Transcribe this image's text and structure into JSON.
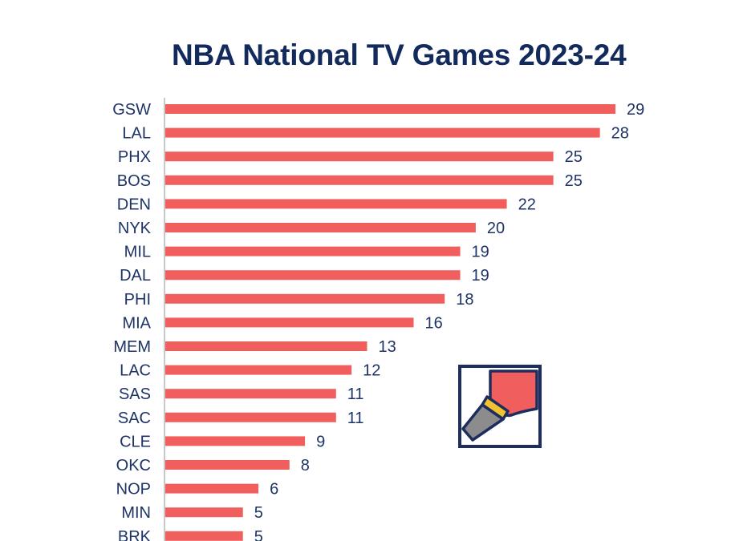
{
  "chart_data": {
    "type": "bar",
    "orientation": "horizontal",
    "title": "NBA National TV Games 2023-24",
    "xlabel": "",
    "ylabel": "",
    "xlim": [
      0,
      29
    ],
    "grid": false,
    "categories": [
      "GSW",
      "LAL",
      "PHX",
      "BOS",
      "DEN",
      "NYK",
      "MIL",
      "DAL",
      "PHI",
      "MIA",
      "MEM",
      "LAC",
      "SAS",
      "SAC",
      "CLE",
      "OKC",
      "NOP",
      "MIN",
      "BRK"
    ],
    "values": [
      29,
      28,
      25,
      25,
      22,
      20,
      19,
      19,
      18,
      16,
      13,
      12,
      11,
      11,
      9,
      8,
      6,
      5,
      5
    ]
  },
  "colors": {
    "bar": "#f05e5e",
    "title": "#132a5c",
    "text": "#1e3366",
    "axis": "#b5b5b5",
    "logo_navy": "#1d2e5e",
    "logo_gold": "#f2c230",
    "logo_gray": "#8c8c8c"
  },
  "logo": {
    "icon": "flashlight-icon"
  }
}
